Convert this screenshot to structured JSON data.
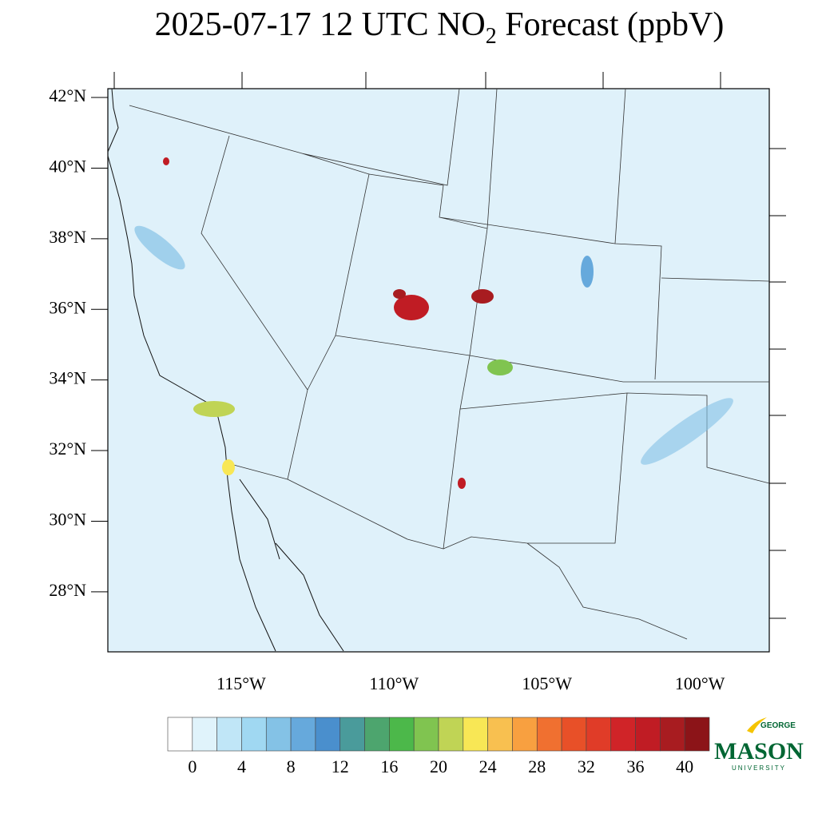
{
  "title": {
    "text": "2025-07-17 12 UTC NO",
    "subscript": "2",
    "suffix": " Forecast (ppbV)"
  },
  "map": {
    "ylim": [
      26.3,
      42.25
    ],
    "yticks": [
      {
        "value": 42,
        "label": "42°N"
      },
      {
        "value": 40,
        "label": "40°N"
      },
      {
        "value": 38,
        "label": "38°N"
      },
      {
        "value": 36,
        "label": "36°N"
      },
      {
        "value": 34,
        "label": "34°N"
      },
      {
        "value": 32,
        "label": "32°N"
      },
      {
        "value": 30,
        "label": "30°N"
      },
      {
        "value": 28,
        "label": "28°N"
      }
    ],
    "xlim": [
      -119.36,
      -97.73
    ],
    "xticks": [
      {
        "value": -115,
        "label": "115°W"
      },
      {
        "value": -110,
        "label": "110°W"
      },
      {
        "value": -105,
        "label": "105°W"
      },
      {
        "value": -100,
        "label": "100°W"
      }
    ]
  },
  "colorbar": {
    "lim": [
      -2,
      42
    ],
    "colors": [
      "#ffffff",
      "#e0f3fb",
      "#c0e6f7",
      "#a0d8f2",
      "#84c2e6",
      "#66a9dc",
      "#4a8fcd",
      "#4a9b9b",
      "#4da56e",
      "#4cb84a",
      "#80c450",
      "#c0d455",
      "#f8e755",
      "#f8c050",
      "#f8a040",
      "#f07030",
      "#e85028",
      "#e03c28",
      "#d02428",
      "#c01c24",
      "#a81c20",
      "#8c1418"
    ],
    "ticks": [
      0,
      4,
      8,
      12,
      16,
      20,
      24,
      28,
      32,
      36,
      40
    ]
  },
  "logo": {
    "top": "GEORGE",
    "name": "MASON",
    "bottom": "UNIVERSITY"
  }
}
